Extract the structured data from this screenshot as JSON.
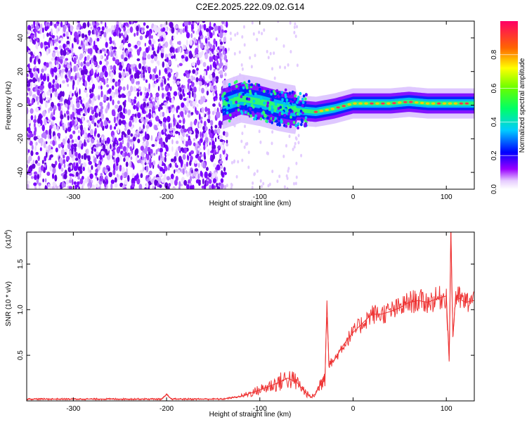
{
  "title": "C2E2.2025.222.09.02.G14",
  "chart_data": [
    {
      "type": "heatmap",
      "xlabel": "Height of straight line (km)",
      "ylabel": "Frequency (Hz)",
      "xlim": [
        -350,
        130
      ],
      "ylim": [
        -50,
        50
      ],
      "xticks": [
        -300,
        -200,
        -100,
        0,
        100
      ],
      "yticks": [
        -40,
        -20,
        0,
        20,
        40
      ],
      "colorbar": {
        "label": "Normalized spectral amplitude",
        "range": [
          0,
          1
        ],
        "ticks": [
          "0.0",
          "0.2",
          "0.4",
          "0.6",
          "0.8"
        ],
        "colormap": "rainbow"
      },
      "signal_ridge": {
        "x": [
          -140,
          -120,
          -100,
          -80,
          -60,
          -40,
          -20,
          0,
          20,
          40,
          60,
          80,
          100,
          130
        ],
        "y": [
          0,
          4,
          2,
          -1,
          -3,
          -4,
          -2,
          1,
          1,
          1,
          2,
          1,
          1,
          1
        ]
      },
      "noise_region_x": [
        -350,
        -135
      ],
      "grid": false
    },
    {
      "type": "line",
      "xlabel": "Height of straight line (km)",
      "ylabel": "SNR (10 * v/v)",
      "yscale_label": "(x10",
      "yscale_exp": "4",
      "xlim": [
        -350,
        130
      ],
      "ylim": [
        0,
        1.85
      ],
      "xticks": [
        -300,
        -200,
        -100,
        0,
        100
      ],
      "yticks": [
        "0.5",
        "1.0",
        "1.5"
      ],
      "ytick_values": [
        0.5,
        1.0,
        1.5
      ],
      "color": "#ee3333",
      "series": [
        {
          "x": [
            -350,
            -250,
            -205,
            -200,
            -195,
            -160,
            -140,
            -120,
            -100,
            -80,
            -70,
            -60,
            -50,
            -45,
            -40,
            -30,
            -28,
            -26,
            -20,
            -10,
            0,
            10,
            20,
            30,
            40,
            50,
            60,
            70,
            80,
            90,
            100,
            103,
            105,
            107,
            110,
            120,
            130
          ],
          "y": [
            0.02,
            0.02,
            0.02,
            0.07,
            0.02,
            0.02,
            0.02,
            0.05,
            0.12,
            0.2,
            0.25,
            0.2,
            0.08,
            0.04,
            0.08,
            0.3,
            1.1,
            0.4,
            0.45,
            0.62,
            0.75,
            0.85,
            0.95,
            0.95,
            0.98,
            1.02,
            1.08,
            1.1,
            1.08,
            1.12,
            1.15,
            0.45,
            1.85,
            0.7,
            1.15,
            1.08,
            1.1
          ]
        }
      ]
    }
  ]
}
